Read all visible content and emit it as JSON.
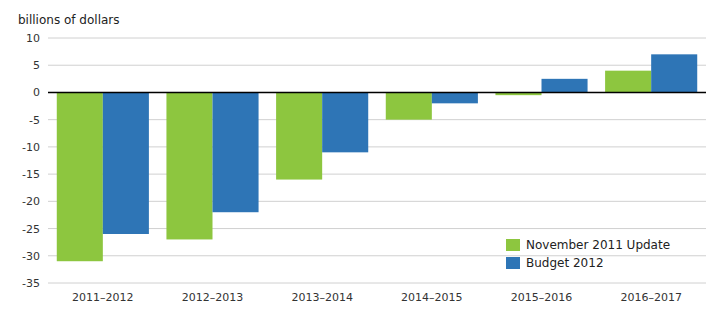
{
  "chart_data": {
    "type": "bar",
    "ylabel": "billions of dollars",
    "categories": [
      "2011–2012",
      "2012–2013",
      "2013–2014",
      "2014–2015",
      "2015–2016",
      "2016–2017"
    ],
    "series": [
      {
        "name": "November 2011 Update",
        "color": "#8DC63F",
        "values": [
          -31.0,
          -27.0,
          -16.0,
          -5.0,
          -0.5,
          4.0
        ]
      },
      {
        "name": "Budget 2012",
        "color": "#2E75B6",
        "values": [
          -26.0,
          -22.0,
          -11.0,
          -2.0,
          2.5,
          7.0
        ]
      }
    ],
    "ylim": [
      -35,
      10
    ],
    "yticks": [
      -35,
      -30,
      -25,
      -20,
      -15,
      -10,
      -5,
      0,
      5,
      10
    ],
    "grid": true,
    "legend": "lower right"
  }
}
